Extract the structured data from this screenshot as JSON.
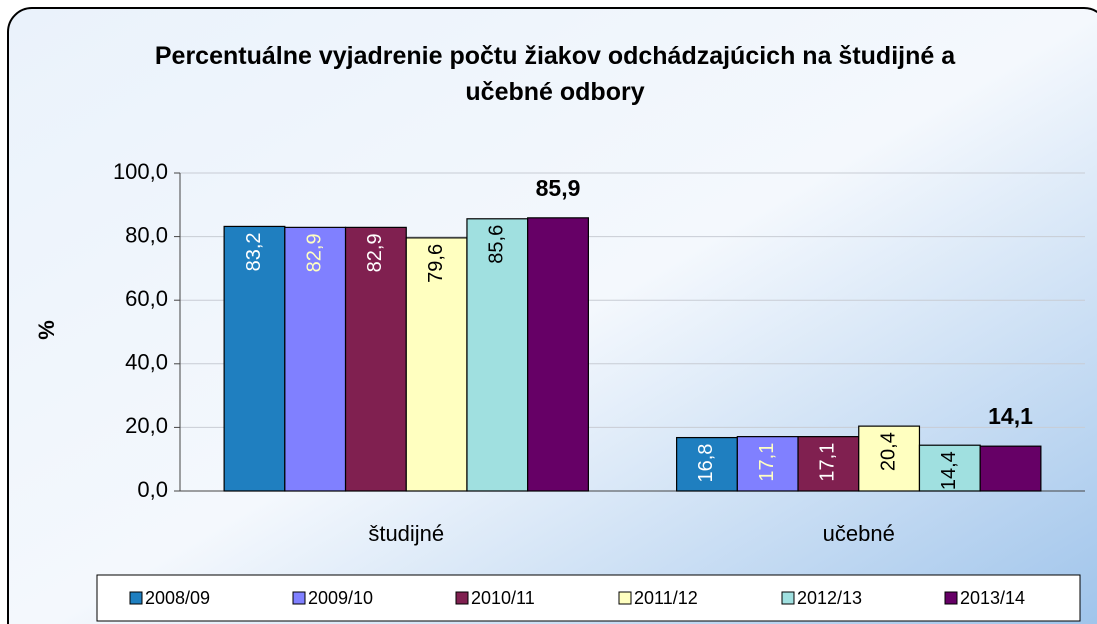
{
  "chart_data": {
    "type": "bar",
    "title": "Percentuálne vyjadrenie počtu žiakov odchádzajúcich na študijné a učebné odbory",
    "y_label": "%",
    "categories": [
      "študijné",
      "učebné"
    ],
    "series": [
      {
        "name": "2008/09",
        "color": "#1f7fc0",
        "label_color": "#ffffff",
        "label_position": "inside",
        "values": [
          83.2,
          16.8
        ],
        "value_labels": [
          "83,2",
          "16,8"
        ]
      },
      {
        "name": "2009/10",
        "color": "#8080ff",
        "label_color": "#ffffc0",
        "label_position": "inside",
        "values": [
          82.9,
          17.1
        ],
        "value_labels": [
          "82,9",
          "17,1"
        ]
      },
      {
        "name": "2010/11",
        "color": "#802050",
        "label_color": "#ffffff",
        "label_position": "inside",
        "values": [
          82.9,
          17.1
        ],
        "value_labels": [
          "82,9",
          "17,1"
        ]
      },
      {
        "name": "2011/12",
        "color": "#ffffc0",
        "label_color": "#000000",
        "label_position": "inside",
        "values": [
          79.6,
          20.4
        ],
        "value_labels": [
          "79,6",
          "20,4"
        ]
      },
      {
        "name": "2012/13",
        "color": "#a0e0e0",
        "label_color": "#000000",
        "label_position": "inside",
        "values": [
          85.6,
          14.4
        ],
        "value_labels": [
          "85,6",
          "14,4"
        ]
      },
      {
        "name": "2013/14",
        "color": "#660066",
        "label_color": "#000000",
        "label_position": "above",
        "values": [
          85.9,
          14.1
        ],
        "value_labels": [
          "85,9",
          "14,1"
        ]
      }
    ],
    "ylim": [
      0,
      100
    ],
    "yticks": [
      {
        "value": 0,
        "label": "0,0"
      },
      {
        "value": 20,
        "label": "20,0"
      },
      {
        "value": 40,
        "label": "40,0"
      },
      {
        "value": 60,
        "label": "60,0"
      },
      {
        "value": 80,
        "label": "80,0"
      },
      {
        "value": 100,
        "label": "100,0"
      }
    ],
    "grid": true,
    "legend": "bottom"
  }
}
